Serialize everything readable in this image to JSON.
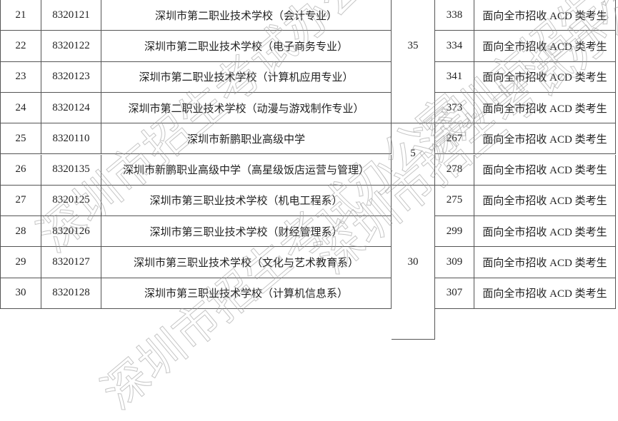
{
  "rows": [
    {
      "no": "21",
      "code": "8320121",
      "school": "深圳市第二职业技术学校（会计专业）",
      "score": "338",
      "scope": "面向全市招收 ACD 类考生"
    },
    {
      "no": "22",
      "code": "8320122",
      "school": "深圳市第二职业技术学校（电子商务专业）",
      "score": "334",
      "scope": "面向全市招收 ACD 类考生"
    },
    {
      "no": "23",
      "code": "8320123",
      "school": "深圳市第二职业技术学校（计算机应用专业）",
      "score": "341",
      "scope": "面向全市招收 ACD 类考生"
    },
    {
      "no": "24",
      "code": "8320124",
      "school": "深圳市第二职业技术学校（动漫与游戏制作专业）",
      "score": "373",
      "scope": "面向全市招收 ACD 类考生"
    },
    {
      "no": "25",
      "code": "8320110",
      "school": "深圳市新鹏职业高级中学",
      "score": "267",
      "scope": "面向全市招收 ACD 类考生"
    },
    {
      "no": "26",
      "code": "8320135",
      "school": "深圳市新鹏职业高级中学（高星级饭店运营与管理）",
      "score": "278",
      "scope": "面向全市招收 ACD 类考生"
    },
    {
      "no": "27",
      "code": "8320125",
      "school": "深圳市第三职业技术学校（机电工程系）",
      "score": "275",
      "scope": "面向全市招收 ACD 类考生"
    },
    {
      "no": "28",
      "code": "8320126",
      "school": "深圳市第三职业技术学校（财经管理系）",
      "score": "299",
      "scope": "面向全市招收 ACD 类考生"
    },
    {
      "no": "29",
      "code": "8320127",
      "school": "深圳市第三职业技术学校（文化与艺术教育系）",
      "score": "309",
      "scope": "面向全市招收 ACD 类考生"
    },
    {
      "no": "30",
      "code": "8320128",
      "school": "深圳市第三职业技术学校（计算机信息系）",
      "score": "307",
      "scope": "面向全市招收 ACD 类考生"
    }
  ],
  "groups": [
    {
      "value": "35",
      "from": -1,
      "to": 4
    },
    {
      "value": "5",
      "from": 4,
      "to": 6
    },
    {
      "value": "30",
      "from": 6,
      "to": 11
    }
  ],
  "watermark": "深圳市招生考试办公室"
}
